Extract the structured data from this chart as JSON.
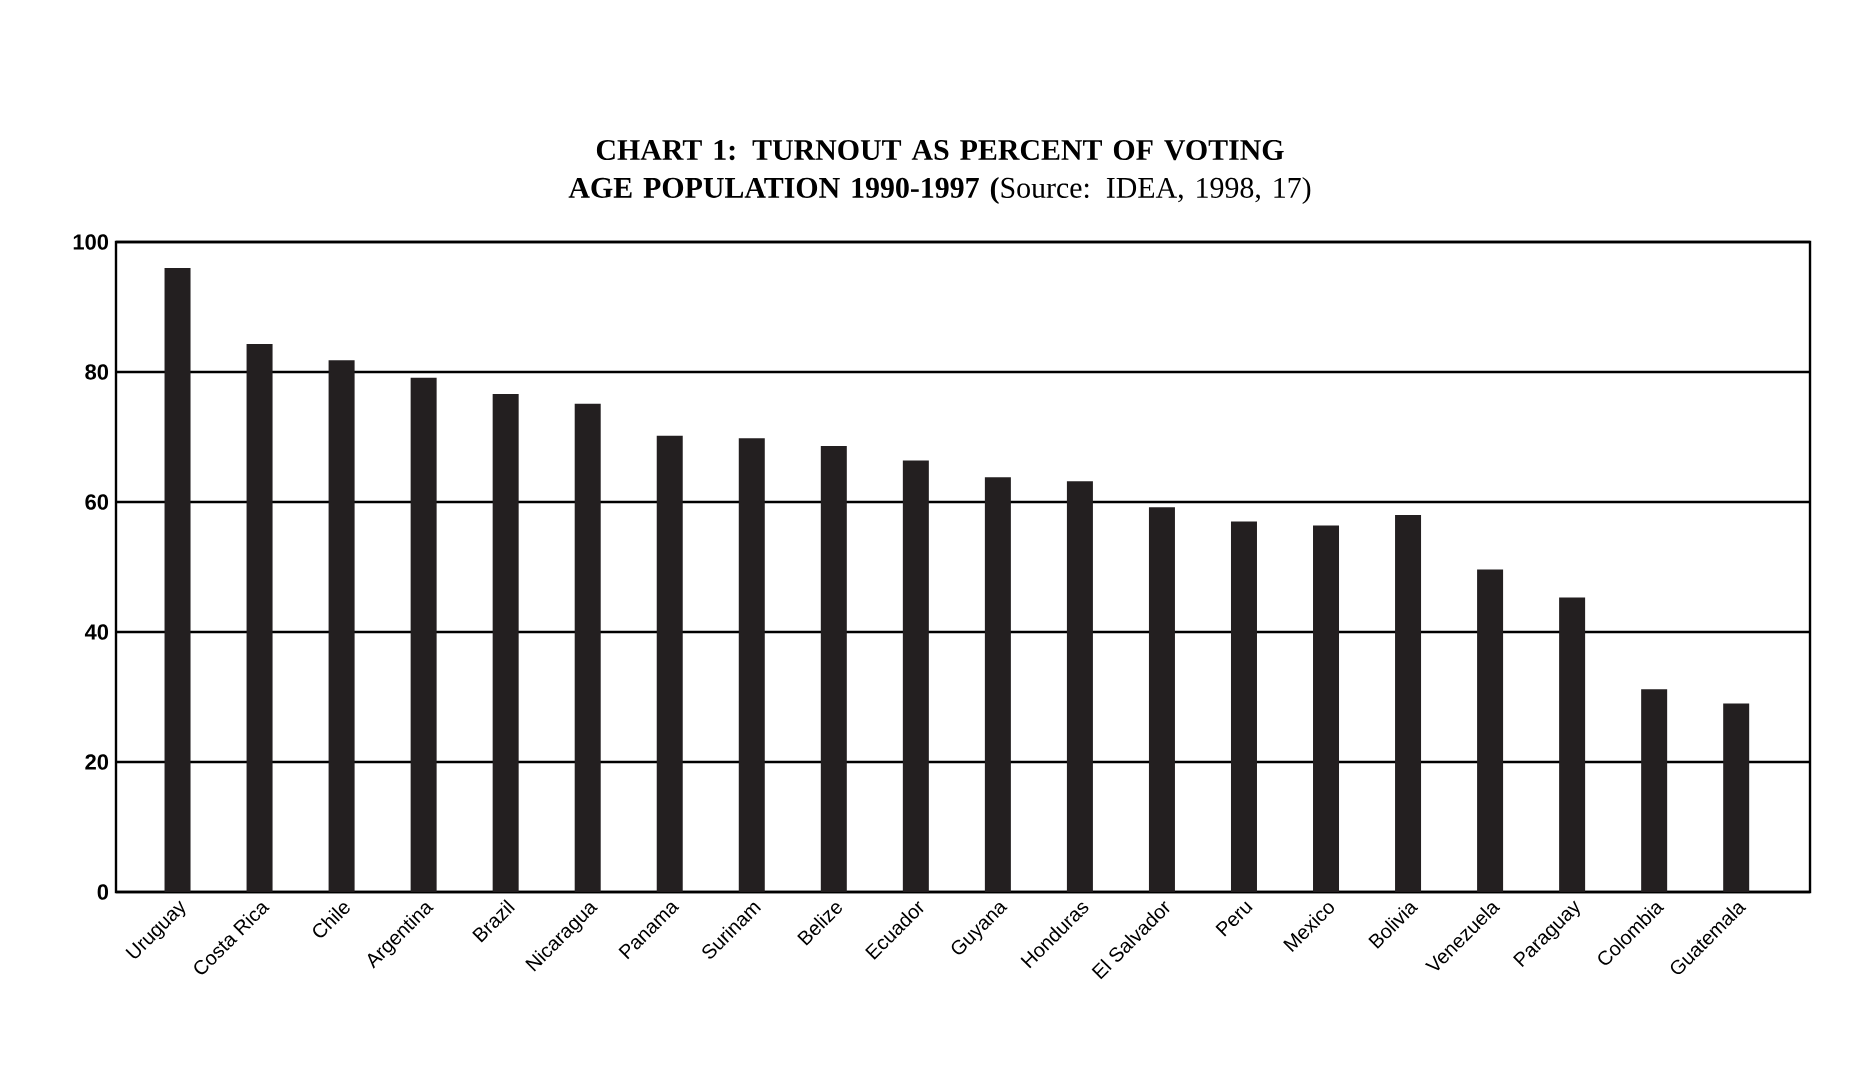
{
  "chart_data": {
    "type": "bar",
    "title": "**CHART 1: TURNOUT AS PERCENT OF VOTING AGE POPULATION 1990-1997 (**Source: IDEA, 1998, 17)",
    "categories": [
      "Uruguay",
      "Costa Rica",
      "Chile",
      "Argentina",
      "Brazil",
      "Nicaragua",
      "Panama",
      "Surinam",
      "Belize",
      "Ecuador",
      "Guyana",
      "Honduras",
      "El Salvador",
      "Peru",
      "Mexico",
      "Bolivia",
      "Venezuela",
      "Paraguay",
      "Colombia",
      "Guatemala"
    ],
    "values": [
      96,
      84.3,
      81.8,
      79.1,
      76.6,
      75.1,
      70.2,
      69.8,
      68.6,
      66.4,
      63.8,
      63.2,
      59.2,
      57,
      56.4,
      58,
      49.6,
      45.3,
      31.2,
      29
    ],
    "color": "#231f20",
    "ylim": [
      0,
      100
    ],
    "yticks": [
      0,
      20,
      40,
      60,
      80,
      100
    ],
    "grid": "y"
  }
}
